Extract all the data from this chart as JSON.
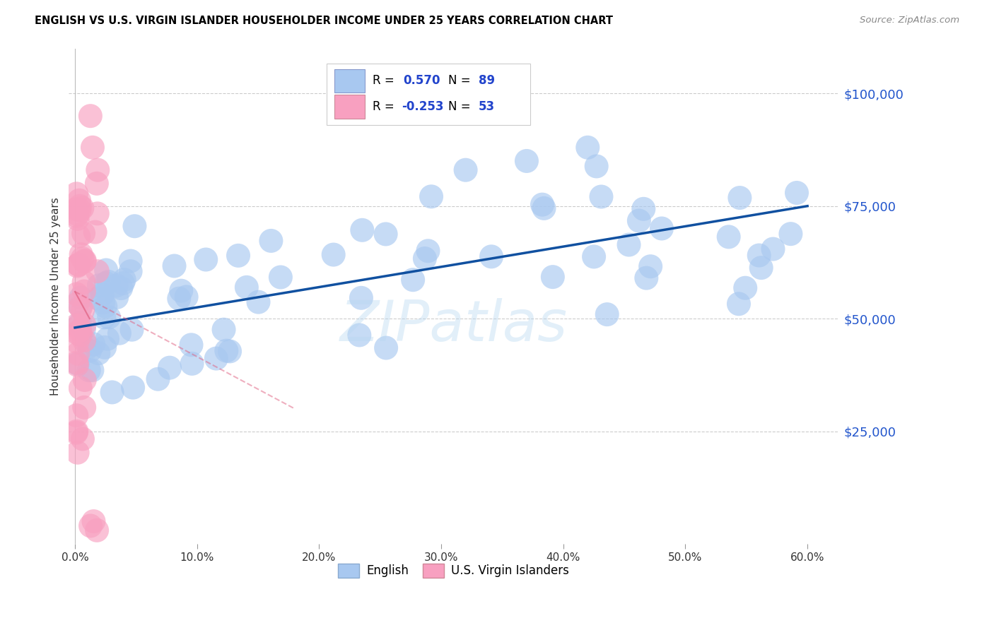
{
  "title": "ENGLISH VS U.S. VIRGIN ISLANDER HOUSEHOLDER INCOME UNDER 25 YEARS CORRELATION CHART",
  "source": "Source: ZipAtlas.com",
  "ylabel": "Householder Income Under 25 years",
  "xlabel_ticks": [
    "0.0%",
    "10.0%",
    "20.0%",
    "30.0%",
    "40.0%",
    "50.0%",
    "60.0%"
  ],
  "xlabel_vals": [
    0.0,
    0.1,
    0.2,
    0.3,
    0.4,
    0.5,
    0.6
  ],
  "ytick_labels": [
    "$25,000",
    "$50,000",
    "$75,000",
    "$100,000"
  ],
  "ytick_vals": [
    25000,
    50000,
    75000,
    100000
  ],
  "ylim": [
    0,
    110000
  ],
  "xlim": [
    -0.005,
    0.625
  ],
  "english_R": 0.57,
  "english_N": 89,
  "virgin_R": -0.253,
  "virgin_N": 53,
  "english_color": "#a8c8f0",
  "english_line_color": "#1050a0",
  "virgin_color": "#f8a0c0",
  "virgin_line_color": "#e06080",
  "watermark": "ZIPatlas",
  "legend_R_color": "#000000",
  "legend_R_value_color": "#2244cc",
  "legend_N_color": "#2244cc"
}
